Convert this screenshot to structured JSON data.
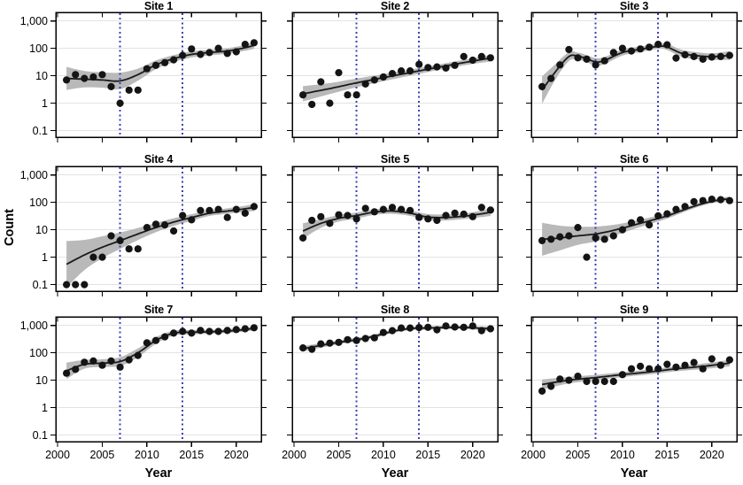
{
  "figure": {
    "y_axis_label": "Count",
    "x_axis_label": "Year",
    "y_tick_labels": [
      "1,000",
      "100",
      "10",
      "1",
      "0.1"
    ],
    "y_tick_values": [
      1000,
      100,
      10,
      1,
      0.1
    ],
    "x_tick_labels": [
      "2000",
      "2005",
      "2010",
      "2015",
      "2020"
    ],
    "x_tick_values": [
      2000,
      2005,
      2010,
      2015,
      2020
    ],
    "reference_years": [
      2007,
      2014
    ],
    "colors": {
      "point": "#141414",
      "trend_line": "#1a1a1a",
      "confidence_band": "#b9b9b9",
      "gridline": "#e3e3e3",
      "frame": "#000000",
      "reference_line": "#3a41b8",
      "text": "#000000"
    }
  },
  "chart_data": {
    "type": "scatter",
    "log_y": true,
    "x_domain": [
      1999.8,
      2022.8
    ],
    "y_domain_log10": [
      -1.24,
      3.31
    ],
    "grid_rows": 3,
    "grid_cols": 3,
    "years": [
      2001,
      2002,
      2003,
      2004,
      2005,
      2006,
      2007,
      2008,
      2009,
      2010,
      2011,
      2012,
      2013,
      2014,
      2015,
      2016,
      2017,
      2018,
      2019,
      2020,
      2021,
      2022
    ],
    "panels": [
      {
        "title": "Site 1",
        "counts": [
          7,
          11,
          8,
          9,
          11,
          4,
          1,
          3,
          3,
          18,
          24,
          30,
          38,
          55,
          95,
          60,
          70,
          100,
          65,
          75,
          140,
          160
        ],
        "trend": [
          [
            2001,
            8,
            0.42
          ],
          [
            2003,
            7.5,
            0.3
          ],
          [
            2005,
            7,
            0.28
          ],
          [
            2007,
            6.5,
            0.3
          ],
          [
            2009,
            11,
            0.22
          ],
          [
            2011,
            25,
            0.16
          ],
          [
            2013,
            42,
            0.13
          ],
          [
            2015,
            60,
            0.11
          ],
          [
            2017,
            70,
            0.1
          ],
          [
            2019,
            80,
            0.1
          ],
          [
            2021,
            105,
            0.11
          ],
          [
            2022,
            130,
            0.13
          ]
        ]
      },
      {
        "title": "Site 2",
        "counts": [
          2,
          0.9,
          6,
          1,
          13,
          2,
          2,
          5,
          7,
          9,
          12,
          15,
          15,
          26,
          20,
          21,
          19,
          24,
          50,
          37,
          50,
          45
        ],
        "trend": [
          [
            2001,
            2.2,
            0.28
          ],
          [
            2004,
            3.4,
            0.2
          ],
          [
            2007,
            5.5,
            0.16
          ],
          [
            2010,
            8.5,
            0.13
          ],
          [
            2013,
            13,
            0.11
          ],
          [
            2016,
            20,
            0.1
          ],
          [
            2019,
            30,
            0.1
          ],
          [
            2022,
            44,
            0.12
          ]
        ]
      },
      {
        "title": "Site 3",
        "counts": [
          4,
          8,
          25,
          90,
          45,
          40,
          25,
          35,
          70,
          100,
          80,
          95,
          110,
          140,
          135,
          44,
          58,
          50,
          40,
          48,
          50,
          55
        ],
        "trend": [
          [
            2001,
            3,
            0.5
          ],
          [
            2002.5,
            14,
            0.28
          ],
          [
            2004,
            50,
            0.16
          ],
          [
            2005,
            52,
            0.13
          ],
          [
            2006,
            42,
            0.13
          ],
          [
            2007,
            32,
            0.14
          ],
          [
            2008,
            36,
            0.13
          ],
          [
            2010,
            70,
            0.11
          ],
          [
            2012,
            92,
            0.1
          ],
          [
            2014,
            118,
            0.09
          ],
          [
            2015,
            112,
            0.11
          ],
          [
            2016.5,
            68,
            0.13
          ],
          [
            2018,
            55,
            0.13
          ],
          [
            2020,
            50,
            0.12
          ],
          [
            2022,
            55,
            0.16
          ]
        ]
      },
      {
        "title": "Site 4",
        "counts": [
          0.1,
          0.1,
          0.1,
          1,
          1,
          6,
          4,
          2,
          2,
          12,
          16,
          15,
          9,
          33,
          23,
          50,
          50,
          55,
          28,
          55,
          40,
          70
        ],
        "trend": [
          [
            2001,
            0.55,
            0.85
          ],
          [
            2003,
            1.2,
            0.55
          ],
          [
            2005,
            2.3,
            0.4
          ],
          [
            2007,
            4,
            0.3
          ],
          [
            2009,
            7,
            0.22
          ],
          [
            2011,
            12,
            0.17
          ],
          [
            2013,
            19,
            0.14
          ],
          [
            2015,
            28,
            0.12
          ],
          [
            2017,
            40,
            0.1
          ],
          [
            2019,
            48,
            0.1
          ],
          [
            2021,
            58,
            0.11
          ],
          [
            2022,
            65,
            0.13
          ]
        ]
      },
      {
        "title": "Site 5",
        "counts": [
          5,
          22,
          30,
          17,
          35,
          33,
          25,
          60,
          45,
          55,
          65,
          55,
          50,
          28,
          25,
          22,
          33,
          40,
          37,
          30,
          65,
          52
        ],
        "trend": [
          [
            2001,
            9,
            0.28
          ],
          [
            2003,
            17,
            0.16
          ],
          [
            2005,
            26,
            0.12
          ],
          [
            2007,
            33,
            0.11
          ],
          [
            2009,
            44,
            0.1
          ],
          [
            2011,
            48,
            0.1
          ],
          [
            2013,
            40,
            0.1
          ],
          [
            2015,
            29,
            0.11
          ],
          [
            2017,
            28,
            0.11
          ],
          [
            2019,
            31,
            0.1
          ],
          [
            2021,
            38,
            0.12
          ],
          [
            2022,
            44,
            0.14
          ]
        ]
      },
      {
        "title": "Site 6",
        "counts": [
          4,
          4.5,
          5.5,
          6,
          12,
          1,
          5,
          4.5,
          6,
          10,
          18,
          23,
          15,
          32,
          38,
          55,
          70,
          105,
          115,
          130,
          125,
          115
        ],
        "trend": [
          [
            2001,
            4.5,
            0.6
          ],
          [
            2003,
            5,
            0.45
          ],
          [
            2005,
            6,
            0.33
          ],
          [
            2007,
            7,
            0.27
          ],
          [
            2009,
            9.5,
            0.2
          ],
          [
            2011,
            14,
            0.15
          ],
          [
            2013,
            21,
            0.12
          ],
          [
            2015,
            32,
            0.1
          ],
          [
            2017,
            55,
            0.08
          ],
          [
            2019,
            90,
            0.07
          ],
          [
            2021,
            125,
            0.07
          ],
          [
            2022,
            130,
            0.09
          ]
        ]
      },
      {
        "title": "Site 7",
        "counts": [
          18,
          25,
          45,
          50,
          35,
          50,
          30,
          55,
          80,
          230,
          280,
          380,
          520,
          600,
          520,
          650,
          600,
          600,
          650,
          700,
          750,
          820
        ],
        "trend": [
          [
            2001,
            22,
            0.3
          ],
          [
            2003,
            38,
            0.16
          ],
          [
            2005,
            42,
            0.14
          ],
          [
            2007,
            48,
            0.16
          ],
          [
            2009,
            100,
            0.16
          ],
          [
            2011,
            280,
            0.12
          ],
          [
            2013,
            520,
            0.09
          ],
          [
            2015,
            560,
            0.08
          ],
          [
            2017,
            580,
            0.07
          ],
          [
            2019,
            620,
            0.07
          ],
          [
            2021,
            700,
            0.07
          ],
          [
            2022,
            800,
            0.08
          ]
        ]
      },
      {
        "title": "Site 8",
        "counts": [
          150,
          135,
          210,
          225,
          240,
          300,
          280,
          330,
          350,
          550,
          640,
          800,
          800,
          830,
          850,
          690,
          950,
          870,
          850,
          950,
          640,
          750
        ],
        "trend": [
          [
            2001,
            140,
            0.1
          ],
          [
            2003,
            185,
            0.08
          ],
          [
            2005,
            240,
            0.07
          ],
          [
            2007,
            300,
            0.07
          ],
          [
            2009,
            400,
            0.07
          ],
          [
            2011,
            600,
            0.06
          ],
          [
            2013,
            760,
            0.06
          ],
          [
            2015,
            800,
            0.06
          ],
          [
            2017,
            830,
            0.06
          ],
          [
            2019,
            840,
            0.06
          ],
          [
            2021,
            780,
            0.07
          ],
          [
            2022,
            740,
            0.09
          ]
        ]
      },
      {
        "title": "Site 9",
        "counts": [
          4,
          6,
          11,
          10,
          14,
          9,
          9,
          9,
          9,
          16,
          26,
          32,
          26,
          26,
          38,
          30,
          35,
          44,
          26,
          60,
          35,
          55
        ],
        "trend": [
          [
            2001,
            7,
            0.18
          ],
          [
            2004,
            10,
            0.12
          ],
          [
            2007,
            12.5,
            0.1
          ],
          [
            2010,
            16,
            0.09
          ],
          [
            2013,
            20,
            0.09
          ],
          [
            2016,
            26,
            0.09
          ],
          [
            2019,
            32,
            0.1
          ],
          [
            2022,
            42,
            0.12
          ]
        ]
      }
    ]
  }
}
